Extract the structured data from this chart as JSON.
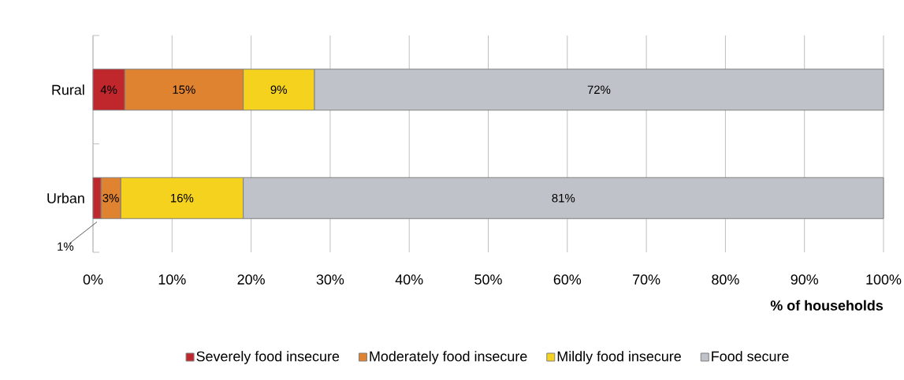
{
  "chart_data": {
    "type": "bar",
    "orientation": "horizontal",
    "stacked": true,
    "categories": [
      "Rural",
      "Urban"
    ],
    "series": [
      {
        "name": "Severely food insecure",
        "color": "#c0272d",
        "values": [
          4,
          1
        ],
        "value_labels": [
          "4%",
          "1%"
        ]
      },
      {
        "name": "Moderately food insecure",
        "color": "#e08330",
        "values": [
          15,
          2.5
        ],
        "value_labels": [
          "15%",
          "3%"
        ]
      },
      {
        "name": "Mildly food insecure",
        "color": "#f5d21e",
        "values": [
          9,
          15.5
        ],
        "value_labels": [
          "9%",
          "16%"
        ]
      },
      {
        "name": "Food secure",
        "color": "#bfc3c9",
        "values": [
          72,
          81
        ],
        "value_labels": [
          "72%",
          "81%"
        ]
      }
    ],
    "xlim": [
      0,
      100
    ],
    "xticks": [
      {
        "value": 0,
        "label": "0%"
      },
      {
        "value": 10,
        "label": "10%"
      },
      {
        "value": 20,
        "label": "20%"
      },
      {
        "value": 30,
        "label": "30%"
      },
      {
        "value": 40,
        "label": "40%"
      },
      {
        "value": 50,
        "label": "50%"
      },
      {
        "value": 60,
        "label": "60%"
      },
      {
        "value": 70,
        "label": "70%"
      },
      {
        "value": 80,
        "label": "80%"
      },
      {
        "value": 90,
        "label": "90%"
      },
      {
        "value": 100,
        "label": "100%"
      }
    ],
    "xlabel": "% of households",
    "grid": "x",
    "legend": "bottom"
  }
}
